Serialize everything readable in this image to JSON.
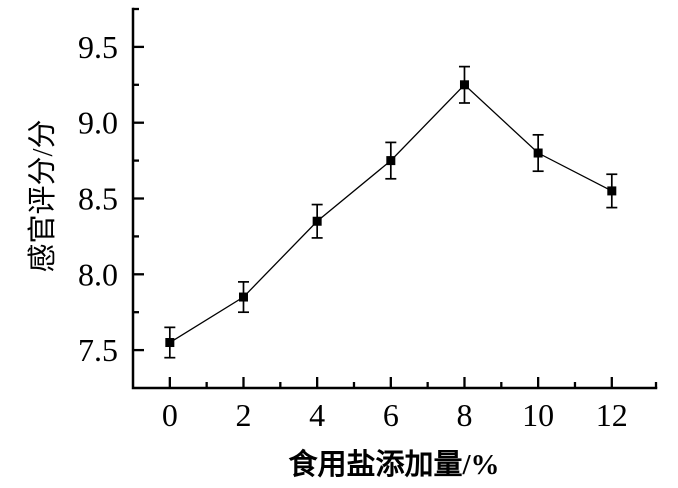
{
  "chart_data": {
    "type": "line",
    "title": "",
    "xlabel": "食用盐添加量/%",
    "ylabel": "感官评分/分",
    "x": [
      0,
      2,
      4,
      6,
      8,
      10,
      12
    ],
    "series": [
      {
        "name": "感官评分",
        "values": [
          7.55,
          7.85,
          8.35,
          8.75,
          9.25,
          8.8,
          8.55
        ],
        "errors": [
          0.1,
          0.1,
          0.11,
          0.12,
          0.12,
          0.12,
          0.11
        ],
        "marker": "filled-square",
        "color": "#000000"
      }
    ],
    "xlim": [
      -1,
      13.2
    ],
    "ylim": [
      7.25,
      9.75
    ],
    "x_major_ticks": [
      0,
      2,
      4,
      6,
      8,
      10,
      12
    ],
    "x_tick_labels": [
      "0",
      "2",
      "4",
      "6",
      "8",
      "10",
      "12"
    ],
    "x_minor_ticks": [
      1,
      3,
      5,
      7,
      9,
      11,
      13.2
    ],
    "y_major_ticks": [
      7.5,
      8.0,
      8.5,
      9.0,
      9.5
    ],
    "y_tick_labels": [
      "7.5",
      "8.0",
      "8.5",
      "9.0",
      "9.5"
    ],
    "y_minor_ticks": [
      7.75,
      8.25,
      8.75,
      9.25,
      9.75
    ],
    "grid": false,
    "legend": null,
    "axis_color": "#000000",
    "background": "#ffffff",
    "tick_direction": "in"
  }
}
